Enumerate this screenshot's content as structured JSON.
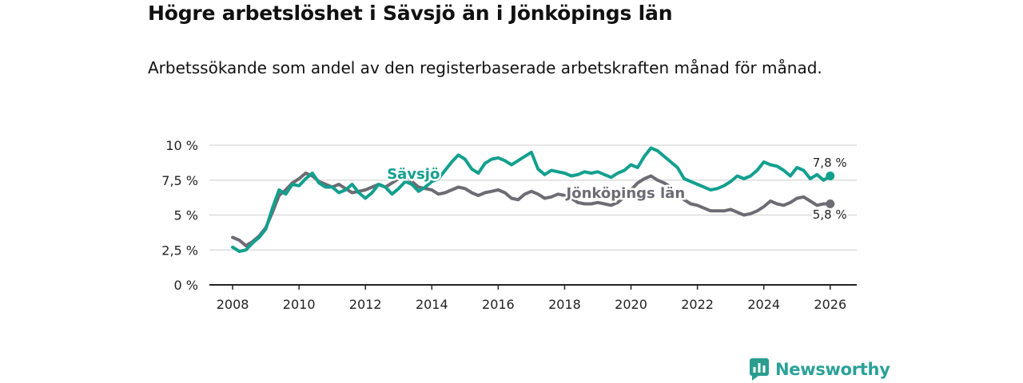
{
  "title": "Högre arbetslöshet i Sävsjö än i Jönköpings län",
  "subtitle": "Arbetssökande som andel av den registerbaserade arbetskraften månad för månad.",
  "brand": {
    "name": "Newsworthy",
    "icon": "newsworthy-logo-icon",
    "color": "#2a9d8f"
  },
  "colors": {
    "savsjo": "#12a08e",
    "lan": "#6d6b73",
    "grid": "#dddddd",
    "axis": "#222222"
  },
  "chart_data": {
    "type": "line",
    "title": "Högre arbetslöshet i Sävsjö än i Jönköpings län",
    "xlabel": "",
    "ylabel": "",
    "xlim": [
      2007.3,
      2026.8
    ],
    "ylim": [
      0,
      10
    ],
    "x_ticks": [
      2008,
      2010,
      2012,
      2014,
      2016,
      2018,
      2020,
      2022,
      2024,
      2026
    ],
    "x_tick_labels": [
      "2008",
      "2010",
      "2012",
      "2014",
      "2016",
      "2018",
      "2020",
      "2022",
      "2024",
      "2026"
    ],
    "y_ticks": [
      0,
      2.5,
      5,
      7.5,
      10
    ],
    "y_tick_labels": [
      "0 %",
      "2,5 %",
      "5 %",
      "7,5 %",
      "10 %"
    ],
    "grid": true,
    "series": [
      {
        "name": "Sävsjö",
        "label": "Sävsjö",
        "color_key": "savsjo",
        "end_label": "7,8 %",
        "points": [
          [
            2008.0,
            2.7
          ],
          [
            2008.2,
            2.4
          ],
          [
            2008.4,
            2.5
          ],
          [
            2008.6,
            3.0
          ],
          [
            2008.8,
            3.4
          ],
          [
            2009.0,
            4.0
          ],
          [
            2009.2,
            5.5
          ],
          [
            2009.4,
            6.8
          ],
          [
            2009.6,
            6.5
          ],
          [
            2009.8,
            7.2
          ],
          [
            2010.0,
            7.1
          ],
          [
            2010.2,
            7.6
          ],
          [
            2010.4,
            8.0
          ],
          [
            2010.6,
            7.3
          ],
          [
            2010.8,
            7.0
          ],
          [
            2011.0,
            7.0
          ],
          [
            2011.2,
            6.6
          ],
          [
            2011.4,
            6.8
          ],
          [
            2011.6,
            7.2
          ],
          [
            2011.8,
            6.6
          ],
          [
            2012.0,
            6.2
          ],
          [
            2012.2,
            6.6
          ],
          [
            2012.4,
            7.2
          ],
          [
            2012.6,
            7.0
          ],
          [
            2012.8,
            6.5
          ],
          [
            2013.0,
            6.9
          ],
          [
            2013.2,
            7.4
          ],
          [
            2013.4,
            7.2
          ],
          [
            2013.6,
            6.7
          ],
          [
            2013.8,
            7.0
          ],
          [
            2014.0,
            7.4
          ],
          [
            2014.2,
            7.6
          ],
          [
            2014.4,
            8.2
          ],
          [
            2014.6,
            8.8
          ],
          [
            2014.8,
            9.3
          ],
          [
            2015.0,
            9.0
          ],
          [
            2015.2,
            8.3
          ],
          [
            2015.4,
            8.0
          ],
          [
            2015.6,
            8.7
          ],
          [
            2015.8,
            9.0
          ],
          [
            2016.0,
            9.1
          ],
          [
            2016.2,
            8.9
          ],
          [
            2016.4,
            8.6
          ],
          [
            2016.6,
            8.9
          ],
          [
            2016.8,
            9.2
          ],
          [
            2017.0,
            9.5
          ],
          [
            2017.2,
            8.3
          ],
          [
            2017.4,
            7.9
          ],
          [
            2017.6,
            8.2
          ],
          [
            2017.8,
            8.1
          ],
          [
            2018.0,
            8.0
          ],
          [
            2018.2,
            7.8
          ],
          [
            2018.4,
            7.9
          ],
          [
            2018.6,
            8.1
          ],
          [
            2018.8,
            8.0
          ],
          [
            2019.0,
            8.1
          ],
          [
            2019.2,
            7.9
          ],
          [
            2019.4,
            7.7
          ],
          [
            2019.6,
            8.0
          ],
          [
            2019.8,
            8.2
          ],
          [
            2020.0,
            8.6
          ],
          [
            2020.2,
            8.4
          ],
          [
            2020.4,
            9.2
          ],
          [
            2020.6,
            9.8
          ],
          [
            2020.8,
            9.6
          ],
          [
            2021.0,
            9.2
          ],
          [
            2021.2,
            8.8
          ],
          [
            2021.4,
            8.4
          ],
          [
            2021.6,
            7.6
          ],
          [
            2021.8,
            7.4
          ],
          [
            2022.0,
            7.2
          ],
          [
            2022.2,
            7.0
          ],
          [
            2022.4,
            6.8
          ],
          [
            2022.6,
            6.9
          ],
          [
            2022.8,
            7.1
          ],
          [
            2023.0,
            7.4
          ],
          [
            2023.2,
            7.8
          ],
          [
            2023.4,
            7.6
          ],
          [
            2023.6,
            7.8
          ],
          [
            2023.8,
            8.2
          ],
          [
            2024.0,
            8.8
          ],
          [
            2024.2,
            8.6
          ],
          [
            2024.4,
            8.5
          ],
          [
            2024.6,
            8.2
          ],
          [
            2024.8,
            7.8
          ],
          [
            2025.0,
            8.4
          ],
          [
            2025.2,
            8.2
          ],
          [
            2025.4,
            7.6
          ],
          [
            2025.6,
            7.9
          ],
          [
            2025.8,
            7.5
          ],
          [
            2026.0,
            7.8
          ]
        ]
      },
      {
        "name": "Jönköpings län",
        "label": "Jönköpings län",
        "color_key": "lan",
        "end_label": "5,8 %",
        "points": [
          [
            2008.0,
            3.4
          ],
          [
            2008.2,
            3.2
          ],
          [
            2008.4,
            2.8
          ],
          [
            2008.6,
            3.1
          ],
          [
            2008.8,
            3.5
          ],
          [
            2009.0,
            4.1
          ],
          [
            2009.2,
            5.2
          ],
          [
            2009.4,
            6.4
          ],
          [
            2009.6,
            6.8
          ],
          [
            2009.8,
            7.3
          ],
          [
            2010.0,
            7.6
          ],
          [
            2010.2,
            8.0
          ],
          [
            2010.4,
            7.8
          ],
          [
            2010.6,
            7.4
          ],
          [
            2010.8,
            7.2
          ],
          [
            2011.0,
            7.0
          ],
          [
            2011.2,
            7.2
          ],
          [
            2011.4,
            6.9
          ],
          [
            2011.6,
            6.6
          ],
          [
            2011.8,
            6.7
          ],
          [
            2012.0,
            6.8
          ],
          [
            2012.2,
            7.0
          ],
          [
            2012.4,
            7.2
          ],
          [
            2012.6,
            7.0
          ],
          [
            2012.8,
            7.3
          ],
          [
            2013.0,
            7.6
          ],
          [
            2013.2,
            7.8
          ],
          [
            2013.4,
            7.4
          ],
          [
            2013.6,
            7.0
          ],
          [
            2013.8,
            6.9
          ],
          [
            2014.0,
            6.8
          ],
          [
            2014.2,
            6.5
          ],
          [
            2014.4,
            6.6
          ],
          [
            2014.6,
            6.8
          ],
          [
            2014.8,
            7.0
          ],
          [
            2015.0,
            6.9
          ],
          [
            2015.2,
            6.6
          ],
          [
            2015.4,
            6.4
          ],
          [
            2015.6,
            6.6
          ],
          [
            2015.8,
            6.7
          ],
          [
            2016.0,
            6.8
          ],
          [
            2016.2,
            6.6
          ],
          [
            2016.4,
            6.2
          ],
          [
            2016.6,
            6.1
          ],
          [
            2016.8,
            6.5
          ],
          [
            2017.0,
            6.7
          ],
          [
            2017.2,
            6.5
          ],
          [
            2017.4,
            6.2
          ],
          [
            2017.6,
            6.3
          ],
          [
            2017.8,
            6.5
          ],
          [
            2018.0,
            6.4
          ],
          [
            2018.2,
            6.2
          ],
          [
            2018.4,
            5.9
          ],
          [
            2018.6,
            5.8
          ],
          [
            2018.8,
            5.8
          ],
          [
            2019.0,
            5.9
          ],
          [
            2019.2,
            5.8
          ],
          [
            2019.4,
            5.7
          ],
          [
            2019.6,
            5.9
          ],
          [
            2019.8,
            6.3
          ],
          [
            2020.0,
            6.8
          ],
          [
            2020.2,
            7.3
          ],
          [
            2020.4,
            7.6
          ],
          [
            2020.6,
            7.8
          ],
          [
            2020.8,
            7.5
          ],
          [
            2021.0,
            7.3
          ],
          [
            2021.2,
            7.0
          ],
          [
            2021.4,
            6.5
          ],
          [
            2021.6,
            6.1
          ],
          [
            2021.8,
            5.8
          ],
          [
            2022.0,
            5.7
          ],
          [
            2022.2,
            5.5
          ],
          [
            2022.4,
            5.3
          ],
          [
            2022.6,
            5.3
          ],
          [
            2022.8,
            5.3
          ],
          [
            2023.0,
            5.4
          ],
          [
            2023.2,
            5.2
          ],
          [
            2023.4,
            5.0
          ],
          [
            2023.6,
            5.1
          ],
          [
            2023.8,
            5.3
          ],
          [
            2024.0,
            5.6
          ],
          [
            2024.2,
            6.0
          ],
          [
            2024.4,
            5.8
          ],
          [
            2024.6,
            5.7
          ],
          [
            2024.8,
            5.9
          ],
          [
            2025.0,
            6.2
          ],
          [
            2025.2,
            6.3
          ],
          [
            2025.4,
            6.0
          ],
          [
            2025.6,
            5.7
          ],
          [
            2025.8,
            5.8
          ],
          [
            2026.0,
            5.8
          ]
        ]
      }
    ]
  }
}
